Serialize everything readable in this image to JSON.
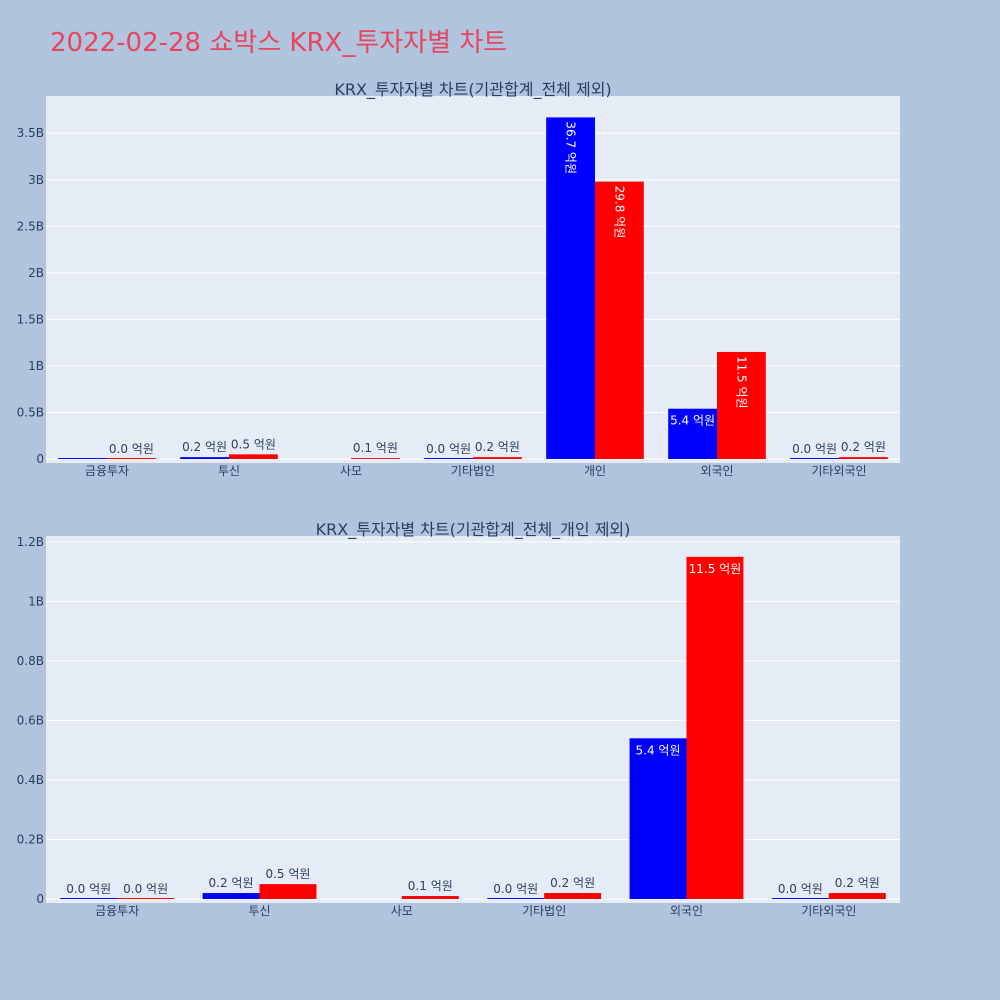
{
  "page_title": "2022-02-28 쇼박스 KRX_투자자별 차트",
  "colors": {
    "buy": "#0000ff",
    "sell": "#ff0000",
    "plot_bg": "#e5ecf6",
    "page_bg": "#b0c4de",
    "title": "#e8455f"
  },
  "chart_data": [
    {
      "type": "bar",
      "title": "KRX_투자자별 차트(기관합계_전체 제외)",
      "categories": [
        "금융투자",
        "투신",
        "사모",
        "기타법인",
        "개인",
        "외국인",
        "기타외국인"
      ],
      "ylim": [
        0,
        3900000000
      ],
      "yticks": [
        0,
        500000000,
        1000000000,
        1500000000,
        2000000000,
        2500000000,
        3000000000,
        3500000000
      ],
      "ytick_labels": [
        "0",
        "0.5B",
        "1B",
        "1.5B",
        "2B",
        "2.5B",
        "3B",
        "3.5B"
      ],
      "grid": true,
      "series": [
        {
          "color": "#0000ff",
          "values": [
            0,
            20000000,
            null,
            0,
            3670000000,
            540000000,
            0
          ],
          "labels": [
            "",
            "0.2 억원",
            "",
            "0.0 억원",
            "36.7 억원",
            "5.4 억원",
            "0.0 억원"
          ]
        },
        {
          "color": "#ff0000",
          "values": [
            0,
            50000000,
            10000000,
            20000000,
            2980000000,
            1150000000,
            20000000
          ],
          "labels": [
            "0.0 억원",
            "0.5 억원",
            "0.1 억원",
            "0.2 억원",
            "29.8 억원",
            "11.5 억원",
            "0.2 억원"
          ]
        }
      ]
    },
    {
      "type": "bar",
      "title": "KRX_투자자별 차트(기관합계_전체_개인 제외)",
      "categories": [
        "금융투자",
        "투신",
        "사모",
        "기타법인",
        "외국인",
        "기타외국인"
      ],
      "ylim": [
        0,
        1220000000
      ],
      "yticks": [
        0,
        200000000,
        400000000,
        600000000,
        800000000,
        1000000000,
        1200000000
      ],
      "ytick_labels": [
        "0",
        "0.2B",
        "0.4B",
        "0.6B",
        "0.8B",
        "1B",
        "1.2B"
      ],
      "grid": true,
      "series": [
        {
          "color": "#0000ff",
          "values": [
            0,
            20000000,
            null,
            0,
            540000000,
            0
          ],
          "labels": [
            "0.0 억원",
            "0.2 억원",
            "",
            "0.0 억원",
            "5.4 억원",
            "0.0 억원"
          ]
        },
        {
          "color": "#ff0000",
          "values": [
            0,
            50000000,
            10000000,
            20000000,
            1150000000,
            20000000
          ],
          "labels": [
            "0.0 억원",
            "0.5 억원",
            "0.1 억원",
            "0.2 억원",
            "11.5 억원",
            "0.2 억원"
          ]
        }
      ]
    }
  ]
}
